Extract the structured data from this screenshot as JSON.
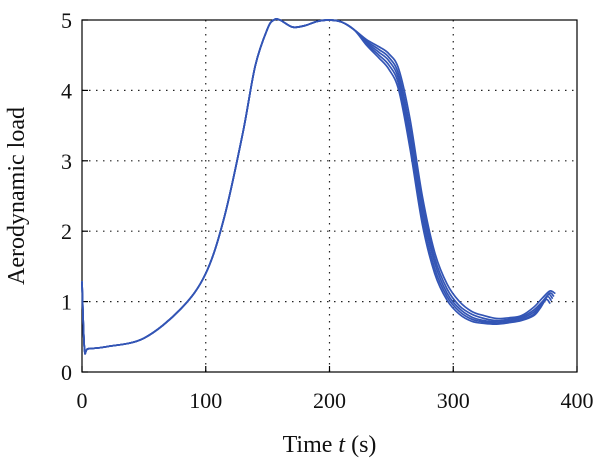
{
  "chart_data": {
    "type": "line",
    "title": "",
    "xlabel": {
      "prefix": "Time ",
      "variable": "t",
      "suffix": " (s)"
    },
    "ylabel": "Aerodynamic load",
    "xlim": [
      0,
      400
    ],
    "ylim": [
      0,
      5
    ],
    "xticks": [
      0,
      100,
      200,
      300,
      400
    ],
    "yticks": [
      0,
      1,
      2,
      3,
      4,
      5
    ],
    "xtick_labels": [
      "0",
      "100",
      "200",
      "300",
      "400"
    ],
    "ytick_labels": [
      "0",
      "1",
      "2",
      "3",
      "4",
      "5"
    ],
    "grid": true,
    "legend": "none",
    "line_color": "#3355b5",
    "shared_x": [
      0,
      2,
      5,
      20,
      50,
      80,
      100,
      115,
      130,
      140,
      150,
      155,
      160,
      170,
      180,
      190,
      200,
      210,
      220
    ],
    "shared_y": [
      1.28,
      0.33,
      0.33,
      0.36,
      0.48,
      0.9,
      1.4,
      2.2,
      3.4,
      4.35,
      4.88,
      5.0,
      5.0,
      4.9,
      4.92,
      4.98,
      5.0,
      4.97,
      4.86
    ],
    "series": [
      {
        "x": [
          220,
          230,
          240,
          248,
          256,
          265,
          275,
          285,
          295,
          305,
          315,
          325,
          335,
          345,
          355,
          365,
          372,
          378,
          382
        ],
        "y": [
          4.86,
          4.72,
          4.62,
          4.52,
          4.3,
          3.6,
          2.5,
          1.7,
          1.25,
          1.0,
          0.86,
          0.8,
          0.76,
          0.77,
          0.8,
          0.92,
          1.05,
          1.15,
          1.12
        ]
      },
      {
        "x": [
          220,
          230,
          240,
          248,
          256,
          265,
          275,
          285,
          295,
          305,
          315,
          325,
          335,
          345,
          355,
          365,
          372,
          378,
          381
        ],
        "y": [
          4.86,
          4.7,
          4.58,
          4.47,
          4.22,
          3.48,
          2.4,
          1.62,
          1.18,
          0.94,
          0.82,
          0.76,
          0.73,
          0.75,
          0.78,
          0.88,
          1.0,
          1.12,
          1.08
        ]
      },
      {
        "x": [
          220,
          230,
          240,
          248,
          256,
          265,
          275,
          285,
          295,
          305,
          315,
          325,
          335,
          345,
          355,
          365,
          372,
          377,
          380
        ],
        "y": [
          4.86,
          4.68,
          4.54,
          4.42,
          4.15,
          3.38,
          2.3,
          1.55,
          1.12,
          0.9,
          0.78,
          0.73,
          0.71,
          0.73,
          0.76,
          0.85,
          0.97,
          1.1,
          1.05
        ]
      },
      {
        "x": [
          220,
          230,
          240,
          248,
          256,
          265,
          275,
          285,
          295,
          305,
          315,
          325,
          335,
          345,
          355,
          365,
          371,
          376,
          379
        ],
        "y": [
          4.86,
          4.66,
          4.5,
          4.36,
          4.08,
          3.28,
          2.2,
          1.47,
          1.07,
          0.86,
          0.75,
          0.71,
          0.69,
          0.71,
          0.74,
          0.82,
          0.94,
          1.07,
          1.02
        ]
      },
      {
        "x": [
          220,
          230,
          240,
          248,
          256,
          265,
          275,
          285,
          295,
          305,
          315,
          325,
          335,
          345,
          355,
          365,
          370,
          375,
          378
        ],
        "y": [
          4.86,
          4.64,
          4.46,
          4.3,
          4.0,
          3.18,
          2.1,
          1.4,
          1.02,
          0.82,
          0.72,
          0.69,
          0.68,
          0.7,
          0.73,
          0.8,
          0.9,
          1.03,
          0.98
        ]
      }
    ]
  }
}
